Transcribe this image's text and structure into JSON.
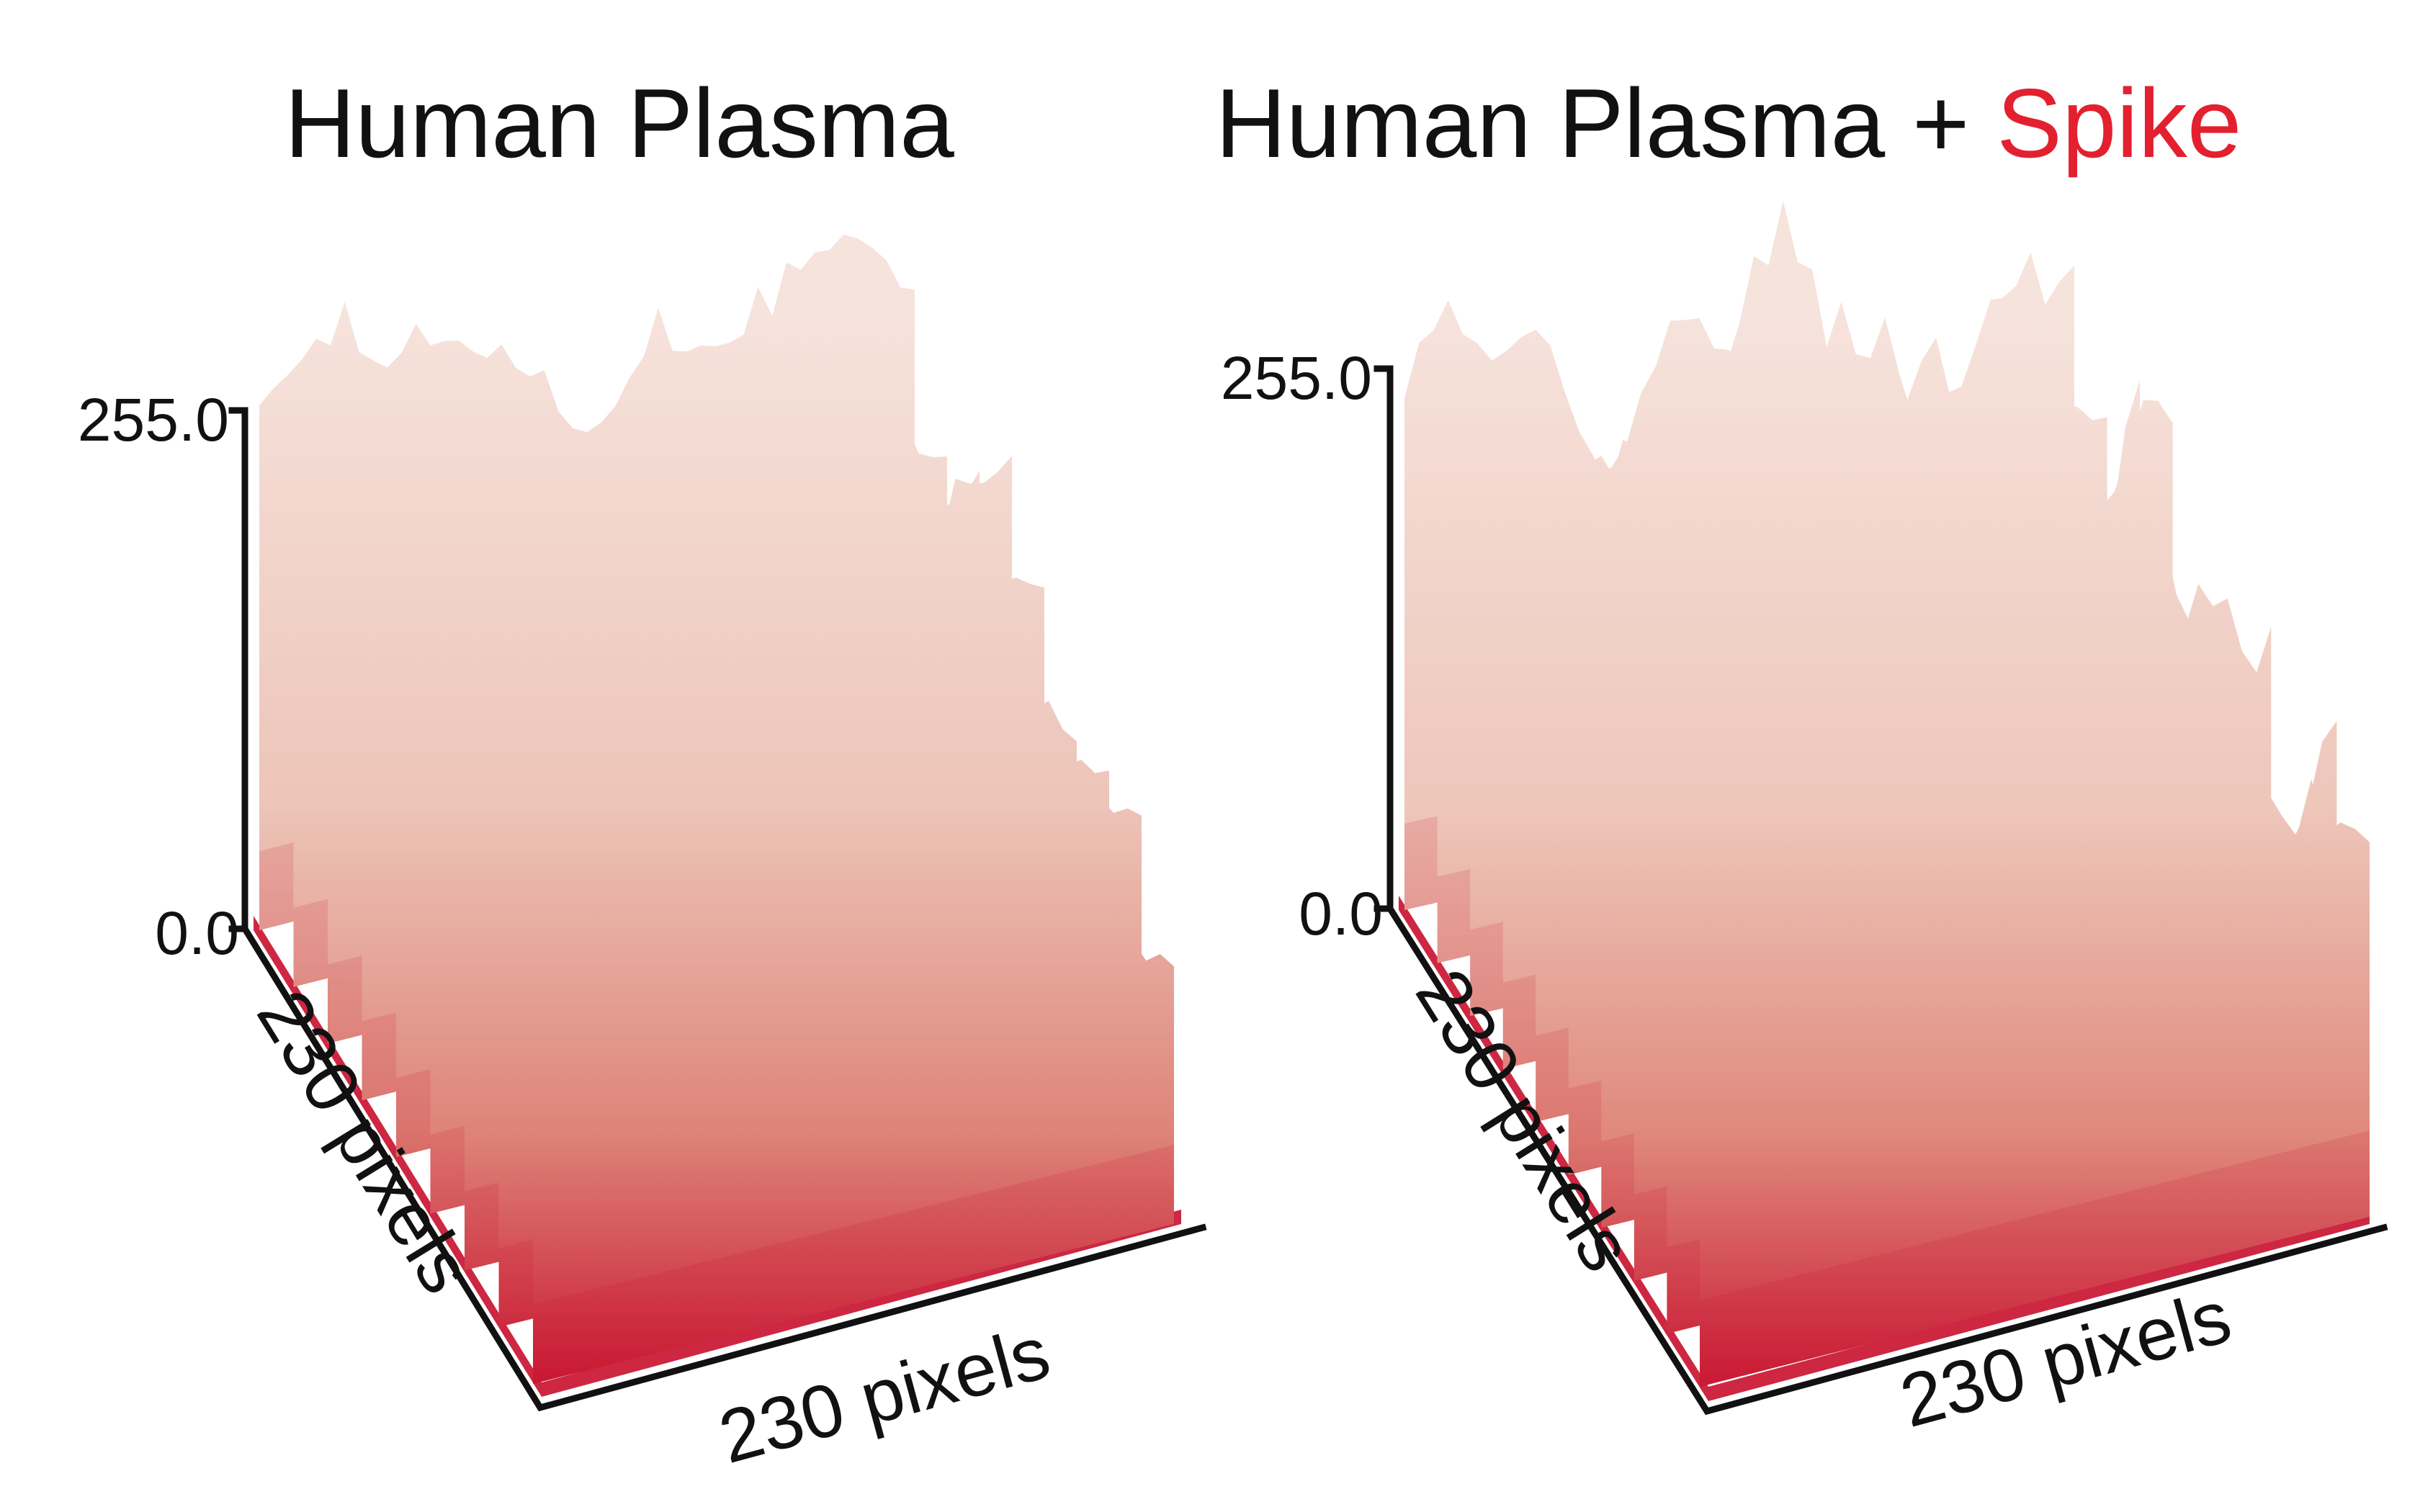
{
  "chart_data": [
    {
      "type": "surface",
      "title": "Human Plasma",
      "zlim": [
        0.0,
        255.0
      ],
      "z_ticks": [
        "255.0",
        "0.0"
      ],
      "xlabel": "230 pixels",
      "ylabel": "230 pixels",
      "colors": {
        "low": "#c8102e",
        "high": "#f6e3dc"
      }
    },
    {
      "type": "surface",
      "title_parts": [
        {
          "text": "Human Plasma + ",
          "color": "#111111"
        },
        {
          "text": "Spike",
          "color": "#e3202f"
        }
      ],
      "zlim": [
        0.0,
        255.0
      ],
      "z_ticks": [
        "255.0",
        "0.0"
      ],
      "xlabel": "230 pixels",
      "ylabel": "230 pixels",
      "colors": {
        "low": "#c8102e",
        "high": "#f6e3dc"
      }
    }
  ]
}
